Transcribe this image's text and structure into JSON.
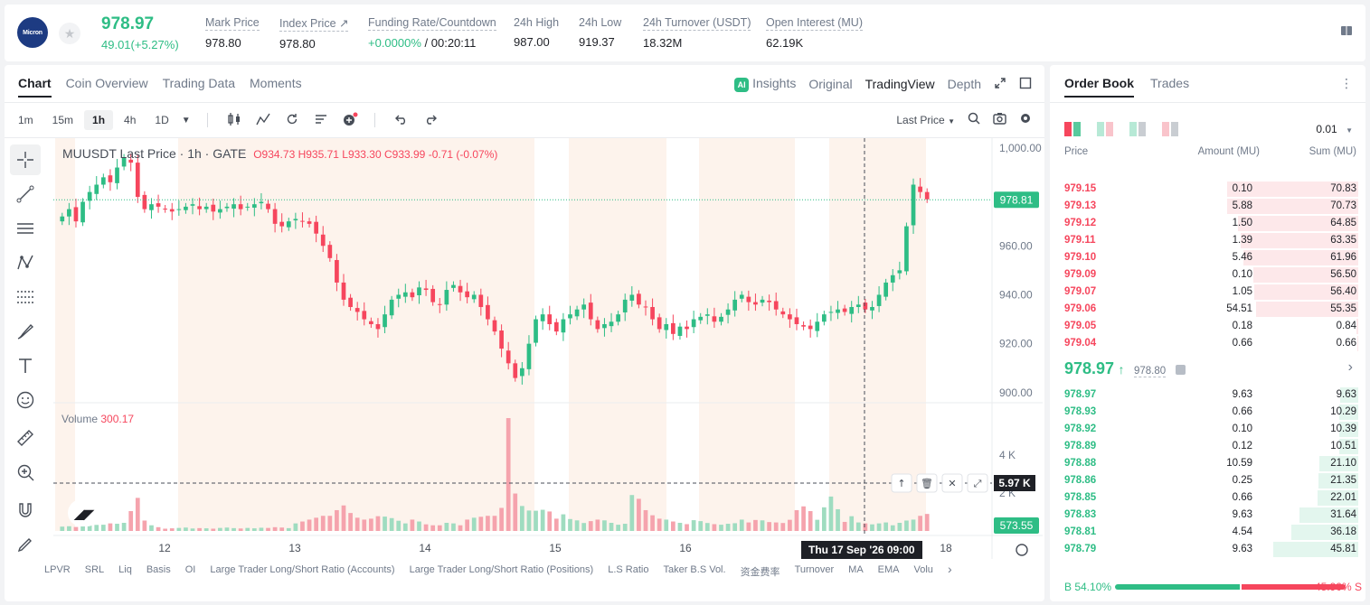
{
  "header": {
    "logo_text": "Micron",
    "last_price": "978.97",
    "change": "49.01(+5.27%)",
    "stats": [
      {
        "label": "Mark Price",
        "value": "978.80"
      },
      {
        "label": "Index Price ↗",
        "value": "978.80"
      },
      {
        "label": "Funding Rate/Countdown",
        "value_green": "+0.0000%",
        "value": " / 00:20:11"
      },
      {
        "label": "24h High",
        "value": "987.00"
      },
      {
        "label": "24h Low",
        "value": "919.37"
      },
      {
        "label": "24h Turnover (USDT)",
        "value": "18.32M"
      },
      {
        "label": "Open Interest (MU)",
        "value": "62.19K"
      }
    ]
  },
  "chart_panel": {
    "tabs": [
      "Chart",
      "Coin Overview",
      "Trading Data",
      "Moments"
    ],
    "views": [
      "Insights",
      "Original",
      "TradingView",
      "Depth"
    ],
    "ai_badge": "AI",
    "timeframes": [
      "1m",
      "15m",
      "1h",
      "4h",
      "1D"
    ],
    "active_timeframe": "1h",
    "price_type": "Last Price",
    "legend": {
      "symbol": "MUUSDT Last Price · 1h · GATE",
      "ohlc": "O934.73  H935.71  L933.30  C933.99  -0.71 (-0.07%)"
    },
    "volume_label": "Volume",
    "volume_value": "300.17",
    "last_price_tag": "978.81",
    "volume_tag": "5.97 K",
    "volume_last_tag": "573.55",
    "crosshair_date": "Thu 17 Sep '26   09:00",
    "indicators": [
      "LPVR",
      "SRL",
      "Liq",
      "Basis",
      "OI",
      "Large Trader Long/Short Ratio (Accounts)",
      "Large Trader Long/Short Ratio (Positions)",
      "L.S Ratio",
      "Taker B.S Vol.",
      "资金费率",
      "Turnover",
      "MA",
      "EMA",
      "Volu"
    ]
  },
  "chart_data": {
    "type": "candlestick",
    "title": "MUUSDT Last Price · 1h · GATE",
    "y_ticks": [
      1000,
      980,
      960,
      940,
      920,
      900
    ],
    "y_tick_labels": [
      "1,000.00",
      "980.00",
      "960.00",
      "940.00",
      "920.00",
      "900.00"
    ],
    "ylim": [
      897,
      1004
    ],
    "x_ticks": [
      "12",
      "13",
      "14",
      "15",
      "16",
      "17",
      "18"
    ],
    "volume_ticks": [
      "4 K",
      "2 K"
    ],
    "vol_max": 5970,
    "close_series": [
      972,
      975,
      970,
      978,
      982,
      985,
      988,
      986,
      992,
      996,
      994,
      980,
      975,
      977,
      976,
      975,
      974,
      975,
      976,
      977,
      975,
      976,
      974,
      975,
      976,
      977,
      975,
      976,
      977,
      978,
      975,
      969,
      968,
      970,
      971,
      970,
      969,
      965,
      960,
      955,
      945,
      938,
      935,
      933,
      930,
      928,
      926,
      932,
      938,
      940,
      941,
      939,
      943,
      942,
      937,
      936,
      942,
      944,
      941,
      939,
      940,
      935,
      930,
      925,
      918,
      912,
      906,
      910,
      920,
      930,
      932,
      928,
      925,
      930,
      932,
      934,
      936,
      930,
      926,
      928,
      929,
      932,
      938,
      940,
      936,
      935,
      930,
      926,
      928,
      924,
      927,
      926,
      930,
      931,
      932,
      929,
      931,
      934,
      938,
      940,
      937,
      936,
      938,
      937,
      934,
      932,
      930,
      928,
      927,
      926,
      929,
      932,
      933,
      934,
      933,
      935,
      936,
      934,
      935,
      940,
      945,
      948,
      950,
      968,
      985,
      982,
      979
    ],
    "volumes": [
      230,
      250,
      210,
      290,
      350,
      320,
      330,
      400,
      380,
      430,
      1050,
      1750,
      550,
      300,
      200,
      120,
      140,
      160,
      180,
      130,
      150,
      140,
      120,
      160,
      180,
      150,
      130,
      160,
      140,
      170,
      160,
      200,
      180,
      150,
      400,
      500,
      600,
      700,
      800,
      800,
      1100,
      1350,
      950,
      700,
      600,
      650,
      780,
      760,
      680,
      540,
      400,
      600,
      500,
      350,
      300,
      300,
      430,
      400,
      300,
      600,
      700,
      750,
      800,
      800,
      1220,
      5970,
      1980,
      1320,
      1080,
      1070,
      1120,
      1030,
      650,
      880,
      630,
      560,
      420,
      520,
      600,
      560,
      430,
      330,
      380,
      1900,
      1700,
      1100,
      830,
      650,
      600,
      500,
      430,
      360,
      570,
      520,
      420,
      360,
      330,
      380,
      410,
      600,
      450,
      580,
      560,
      470,
      450,
      420,
      590,
      1100,
      1300,
      1050,
      590,
      1250,
      1820,
      1150,
      480,
      780,
      450,
      400,
      350,
      400,
      450,
      300,
      430,
      550,
      600,
      800,
      900,
      3500,
      1300,
      400
    ]
  },
  "orderbook": {
    "tabs": [
      "Order Book",
      "Trades"
    ],
    "precision": "0.01",
    "headers": [
      "Price",
      "Amount (MU)",
      "Sum (MU)"
    ],
    "asks": [
      {
        "price": "979.15",
        "amount": "0.10",
        "sum": "70.83",
        "depth": 1.0
      },
      {
        "price": "979.13",
        "amount": "5.88",
        "sum": "70.73",
        "depth": 0.999
      },
      {
        "price": "979.12",
        "amount": "1.50",
        "sum": "64.85",
        "depth": 0.915
      },
      {
        "price": "979.11",
        "amount": "1.39",
        "sum": "63.35",
        "depth": 0.894
      },
      {
        "price": "979.10",
        "amount": "5.46",
        "sum": "61.96",
        "depth": 0.875
      },
      {
        "price": "979.09",
        "amount": "0.10",
        "sum": "56.50",
        "depth": 0.798
      },
      {
        "price": "979.07",
        "amount": "1.05",
        "sum": "56.40",
        "depth": 0.796
      },
      {
        "price": "979.06",
        "amount": "54.51",
        "sum": "55.35",
        "depth": 0.781
      },
      {
        "price": "979.05",
        "amount": "0.18",
        "sum": "0.84",
        "depth": 0.012
      },
      {
        "price": "979.04",
        "amount": "0.66",
        "sum": "0.66",
        "depth": 0.009
      }
    ],
    "mid_price": "978.97",
    "mid_mark": "978.80",
    "bids": [
      {
        "price": "978.97",
        "amount": "9.63",
        "sum": "9.63",
        "depth": 0.136
      },
      {
        "price": "978.93",
        "amount": "0.66",
        "sum": "10.29",
        "depth": 0.145
      },
      {
        "price": "978.92",
        "amount": "0.10",
        "sum": "10.39",
        "depth": 0.147
      },
      {
        "price": "978.89",
        "amount": "0.12",
        "sum": "10.51",
        "depth": 0.148
      },
      {
        "price": "978.88",
        "amount": "10.59",
        "sum": "21.10",
        "depth": 0.298
      },
      {
        "price": "978.86",
        "amount": "0.25",
        "sum": "21.35",
        "depth": 0.301
      },
      {
        "price": "978.85",
        "amount": "0.66",
        "sum": "22.01",
        "depth": 0.311
      },
      {
        "price": "978.83",
        "amount": "9.63",
        "sum": "31.64",
        "depth": 0.447
      },
      {
        "price": "978.81",
        "amount": "4.54",
        "sum": "36.18",
        "depth": 0.511
      },
      {
        "price": "978.79",
        "amount": "9.63",
        "sum": "45.81",
        "depth": 0.647
      }
    ],
    "buy_ratio": "B 54.10%",
    "sell_ratio": "45.90% S",
    "buy_fraction": 0.541
  },
  "colors": {
    "up": "#2ebd85",
    "down": "#f6465d",
    "session": "#fdf3ec"
  }
}
